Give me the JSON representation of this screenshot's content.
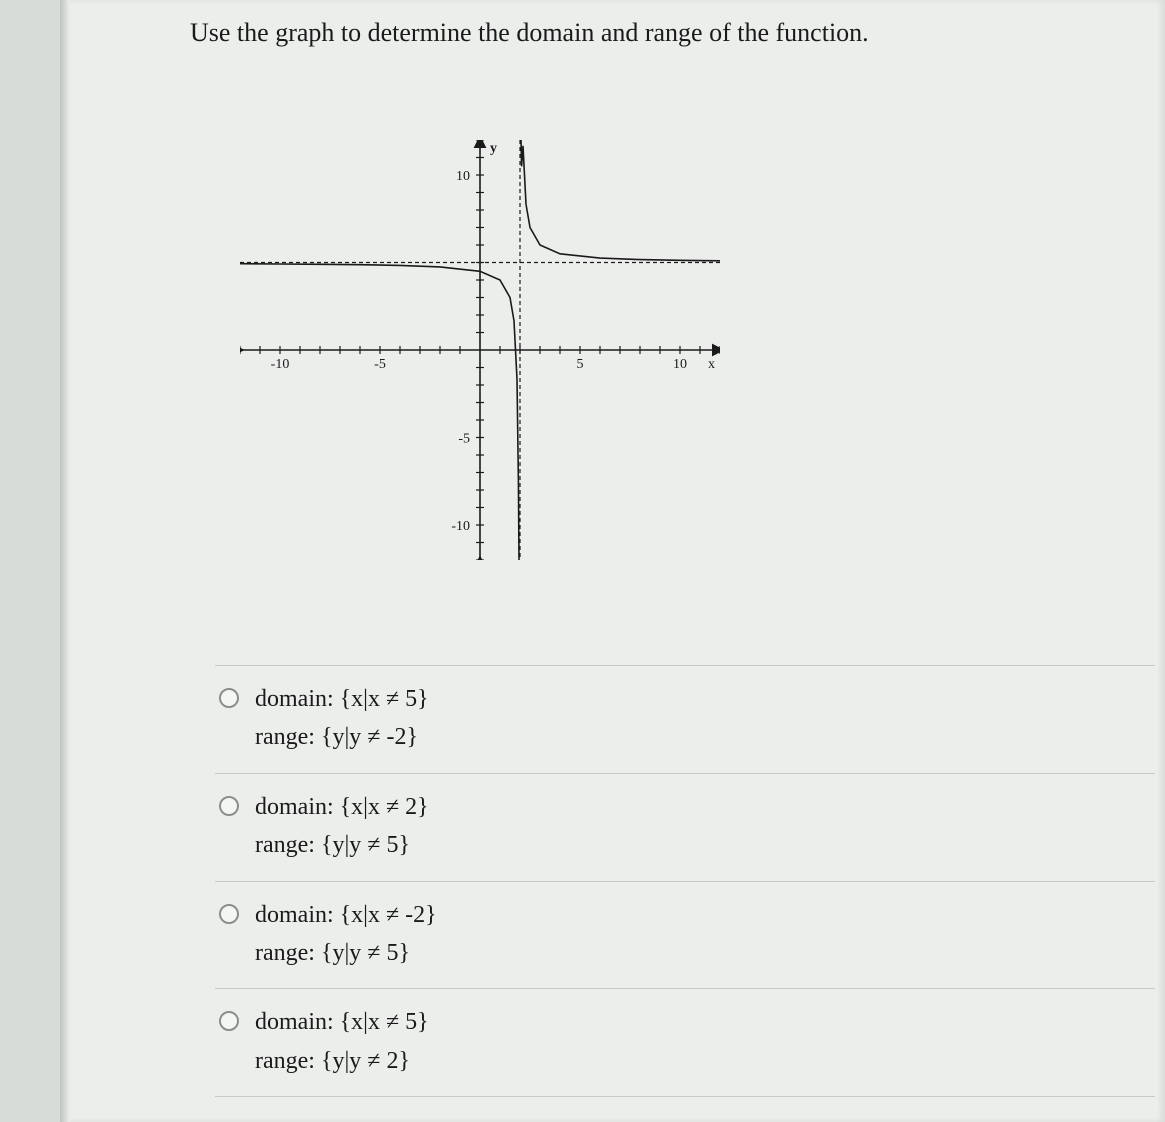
{
  "prompt": "Use the graph to determine the domain and range of the function.",
  "graph": {
    "type": "line",
    "xlim": [
      -12,
      12
    ],
    "ylim": [
      -12,
      12
    ],
    "xticks": [
      -10,
      -5,
      5,
      10
    ],
    "yticks": [
      -10,
      -5,
      10
    ],
    "xtick_labels": [
      "-10",
      "-5",
      "5",
      "10"
    ],
    "ytick_labels": [
      "-10",
      "-5",
      "10"
    ],
    "x_axis_label": "x",
    "y_axis_label": "y",
    "axis_color": "#1a1a1a",
    "tick_color": "#1a1a1a",
    "curve_color": "#1a1a1a",
    "asymptote_color": "#1a1a1a",
    "asymptote_dash": "4 3",
    "background_color": "#eceeec",
    "vertical_asymptote_x": 2,
    "horizontal_asymptote_y": 5,
    "left_branch": [
      [
        -12,
        4.93
      ],
      [
        -10,
        4.917
      ],
      [
        -8,
        4.9
      ],
      [
        -6,
        4.875
      ],
      [
        -4,
        4.833
      ],
      [
        -2,
        4.75
      ],
      [
        0,
        4.5
      ],
      [
        1,
        4.0
      ],
      [
        1.5,
        3.0
      ],
      [
        1.7,
        1.67
      ],
      [
        1.85,
        -1.67
      ],
      [
        1.92,
        -7.5
      ],
      [
        1.95,
        -12
      ]
    ],
    "right_branch": [
      [
        2.05,
        12
      ],
      [
        2.08,
        10.5
      ],
      [
        2.15,
        11.67
      ],
      [
        2.3,
        8.33
      ],
      [
        2.5,
        7.0
      ],
      [
        3,
        6.0
      ],
      [
        4,
        5.5
      ],
      [
        6,
        5.25
      ],
      [
        8,
        5.167
      ],
      [
        10,
        5.125
      ],
      [
        12,
        5.1
      ]
    ],
    "tick_length": 4,
    "axis_width": 1.6,
    "curve_width": 1.6,
    "label_fontsize": 14
  },
  "options": [
    {
      "domain": "domain: {x|x ≠ 5}",
      "range": "range: {y|y ≠ -2}"
    },
    {
      "domain": "domain: {x|x ≠ 2}",
      "range": "range: {y|y ≠ 5}"
    },
    {
      "domain": "domain: {x|x ≠ -2}",
      "range": "range: {y|y ≠ 5}"
    },
    {
      "domain": "domain: {x|x ≠ 5}",
      "range": "range: {y|y ≠ 2}"
    }
  ]
}
